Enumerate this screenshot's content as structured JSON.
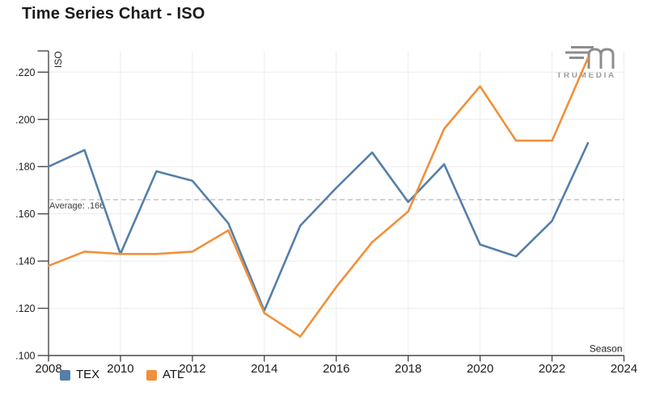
{
  "page": {
    "title": "Time Series Chart - ISO"
  },
  "logo": {
    "name": "TruMedia",
    "text": "TRUMEDIA",
    "color": "#8d8d8d"
  },
  "legend": [
    {
      "label": "TEX",
      "color": "#557fa9"
    },
    {
      "label": "ATL",
      "color": "#f0903b"
    }
  ],
  "axes": {
    "y_label": "ISO",
    "x_label": "Season",
    "y_ticks": [
      {
        "value": 0.22,
        "label": ".220"
      },
      {
        "value": 0.2,
        "label": ".200"
      },
      {
        "value": 0.18,
        "label": ".180"
      },
      {
        "value": 0.16,
        "label": ".160"
      },
      {
        "value": 0.14,
        "label": ".140"
      },
      {
        "value": 0.12,
        "label": ".120"
      },
      {
        "value": 0.1,
        "label": ".100"
      }
    ],
    "x_ticks": [
      {
        "value": 2008,
        "label": "2008"
      },
      {
        "value": 2010,
        "label": "2010"
      },
      {
        "value": 2012,
        "label": "2012"
      },
      {
        "value": 2014,
        "label": "2014"
      },
      {
        "value": 2016,
        "label": "2016"
      },
      {
        "value": 2018,
        "label": "2018"
      },
      {
        "value": 2020,
        "label": "2020"
      },
      {
        "value": 2022,
        "label": "2022"
      },
      {
        "value": 2024,
        "label": "2024"
      }
    ]
  },
  "average_line": {
    "value": 0.166,
    "label": "Average: .166"
  },
  "chart_data": {
    "type": "line",
    "title": "Time Series Chart - ISO",
    "xlabel": "Season",
    "ylabel": "ISO",
    "x": [
      2008,
      2009,
      2010,
      2011,
      2012,
      2013,
      2014,
      2015,
      2016,
      2017,
      2018,
      2019,
      2020,
      2021,
      2022,
      2023
    ],
    "series": [
      {
        "name": "TEX",
        "color": "#557fa9",
        "values": [
          0.18,
          0.187,
          0.143,
          0.178,
          0.174,
          0.156,
          0.119,
          0.155,
          0.171,
          0.186,
          0.165,
          0.181,
          0.147,
          0.142,
          0.157,
          0.19
        ]
      },
      {
        "name": "ATL",
        "color": "#f0903b",
        "values": [
          0.138,
          0.144,
          0.143,
          0.143,
          0.144,
          0.153,
          0.118,
          0.108,
          0.129,
          0.148,
          0.161,
          0.196,
          0.214,
          0.191,
          0.191,
          0.226
        ]
      }
    ],
    "xlim": [
      2008,
      2024
    ],
    "ylim": [
      0.1,
      0.2285
    ],
    "average": 0.166,
    "grid": true,
    "legend_position": "bottom-left"
  },
  "colors": {
    "grid": "#ececec",
    "axis": "#4a4a4a",
    "average_line": "#b9b9b9",
    "tick_text": "#1c1c1c",
    "axis_title_text": "#222222",
    "average_text": "#3c3c3c"
  }
}
